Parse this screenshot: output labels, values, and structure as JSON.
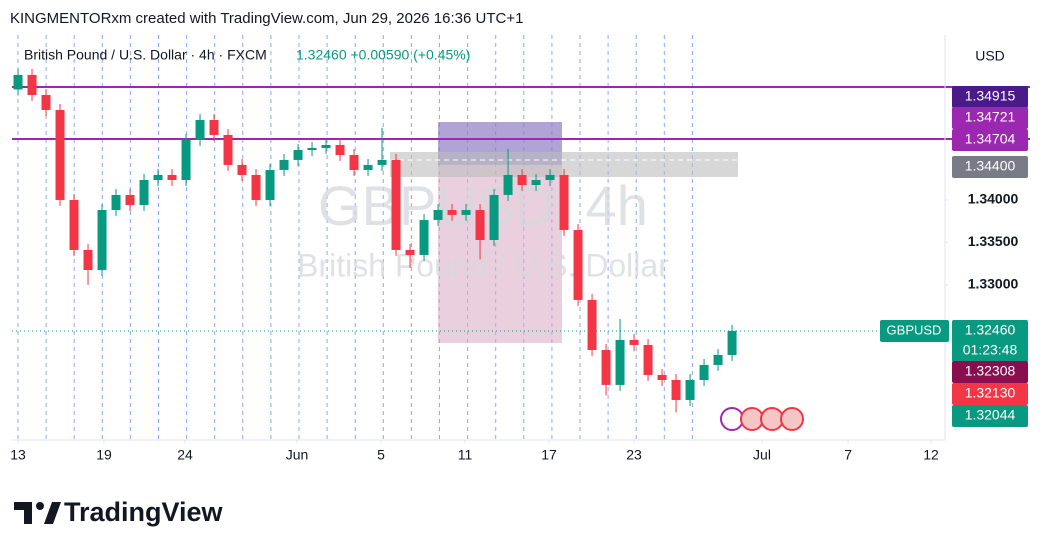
{
  "chart_data": {
    "type": "candlestick",
    "header": "KINGMENTORxm created with TradingView.com, Jun 29, 2026 16:36 UTC+1",
    "symbol_line": "British Pound / U.S. Dollar · 4h · FXCM",
    "quote": "1.32460 +0.00590 (+0.45%)",
    "watermark": "GBPUSD, 4h",
    "watermark_sub": "British Pound / U.S. Dollar",
    "currency": "USD",
    "footer": "TradingView",
    "up_color": "#089981",
    "down_color": "#f23645",
    "x": [
      0,
      1,
      2,
      3,
      4,
      5,
      6,
      7,
      8,
      9,
      10,
      11,
      12,
      13,
      14,
      15,
      16,
      17,
      18,
      19,
      20,
      21,
      22,
      23,
      24,
      25,
      26,
      27,
      28,
      29,
      30,
      31,
      32,
      33,
      34,
      35,
      36,
      37,
      38,
      39,
      40,
      41,
      42,
      43,
      44,
      45,
      46,
      47,
      48,
      49,
      50,
      51
    ],
    "open": [
      1.353,
      1.35471,
      1.35235,
      1.35059,
      1.34,
      1.33412,
      1.33176,
      1.33882,
      1.34059,
      1.33941,
      1.34235,
      1.34294,
      1.34235,
      1.34706,
      1.34941,
      1.34765,
      1.34412,
      1.34294,
      1.34,
      1.34353,
      1.34471,
      1.34588,
      1.34612,
      1.34647,
      1.34529,
      1.34353,
      1.34412,
      1.34471,
      1.33412,
      1.33353,
      1.33765,
      1.33882,
      1.33824,
      1.33882,
      1.33529,
      1.34059,
      1.34294,
      1.34176,
      1.34235,
      1.34294,
      1.33647,
      1.32824,
      1.32235,
      1.31824,
      1.32353,
      1.32294,
      1.31941,
      1.31882,
      1.31647,
      1.31882,
      1.32059,
      1.32176
    ],
    "high": [
      1.35541,
      1.35541,
      1.35305,
      1.35129,
      1.3407,
      1.33482,
      1.33952,
      1.34129,
      1.34129,
      1.34305,
      1.34364,
      1.34364,
      1.34776,
      1.35011,
      1.35011,
      1.34835,
      1.34482,
      1.34364,
      1.34423,
      1.34541,
      1.34658,
      1.34682,
      1.34717,
      1.34717,
      1.34599,
      1.34482,
      1.3485,
      1.34541,
      1.33482,
      1.33835,
      1.33952,
      1.33952,
      1.33952,
      1.33952,
      1.34129,
      1.346,
      1.34364,
      1.34305,
      1.34364,
      1.34364,
      1.33717,
      1.32894,
      1.32305,
      1.326,
      1.32423,
      1.32364,
      1.32011,
      1.31952,
      1.31952,
      1.32129,
      1.32246,
      1.3253
    ],
    "low": [
      1.3523,
      1.35165,
      1.34989,
      1.3393,
      1.33342,
      1.33,
      1.33106,
      1.33812,
      1.33871,
      1.33871,
      1.34165,
      1.34165,
      1.34165,
      1.34636,
      1.34695,
      1.34342,
      1.34224,
      1.3393,
      1.3393,
      1.34283,
      1.34401,
      1.34518,
      1.34542,
      1.34459,
      1.34283,
      1.34283,
      1.34342,
      1.33342,
      1.332,
      1.33283,
      1.33695,
      1.33754,
      1.33754,
      1.333,
      1.33459,
      1.33989,
      1.34106,
      1.34106,
      1.34165,
      1.33577,
      1.32754,
      1.32165,
      1.317,
      1.31754,
      1.32224,
      1.31871,
      1.31812,
      1.315,
      1.31577,
      1.31812,
      1.31989,
      1.32106
    ],
    "close": [
      1.35471,
      1.35235,
      1.35059,
      1.34,
      1.33412,
      1.33176,
      1.33882,
      1.34059,
      1.33941,
      1.34235,
      1.34294,
      1.34235,
      1.34706,
      1.34941,
      1.34765,
      1.34412,
      1.34294,
      1.34,
      1.34353,
      1.34471,
      1.34588,
      1.34612,
      1.34647,
      1.34529,
      1.34353,
      1.34412,
      1.34471,
      1.33412,
      1.33353,
      1.33765,
      1.33882,
      1.33824,
      1.33882,
      1.33529,
      1.34059,
      1.34294,
      1.34176,
      1.34235,
      1.34294,
      1.33647,
      1.32824,
      1.32235,
      1.31824,
      1.32353,
      1.32294,
      1.31941,
      1.31882,
      1.31647,
      1.31882,
      1.32059,
      1.32176,
      1.3246
    ],
    "xlim": [
      -0.43,
      66.21
    ],
    "xticks": [
      {
        "value": 0,
        "label": "13"
      },
      {
        "value": 6.14,
        "label": "19"
      },
      {
        "value": 11.93,
        "label": "24"
      },
      {
        "value": 19.93,
        "label": "Jun"
      },
      {
        "value": 25.93,
        "label": "5"
      },
      {
        "value": 31.93,
        "label": "11"
      },
      {
        "value": 37.93,
        "label": "17"
      },
      {
        "value": 44,
        "label": "23"
      },
      {
        "value": 53.14,
        "label": "Jul"
      },
      {
        "value": 59.29,
        "label": "7"
      },
      {
        "value": 65.21,
        "label": "12"
      }
    ],
    "ylim": [
      1.31176,
      1.35941
    ],
    "yticks": [
      {
        "value": 1.34,
        "label": "1.34000"
      },
      {
        "value": 1.335,
        "label": "1.33500"
      },
      {
        "value": 1.33,
        "label": "1.33000"
      }
    ],
    "price_tags": [
      {
        "label": "1.34915",
        "color": "#4a1a8a"
      },
      {
        "label": "1.34721",
        "color": "#9c27b0"
      },
      {
        "label": "1.34704",
        "color": "#9c27b0"
      },
      {
        "label": "1.34400",
        "color": "#787b86"
      },
      {
        "label": "1.32460",
        "color": "#089981"
      },
      {
        "label": "01:23:48",
        "color": "#089981"
      },
      {
        "label": "1.32308",
        "color": "#880e4f"
      },
      {
        "label": "1.32130",
        "color": "#f23645"
      },
      {
        "label": "1.32044",
        "color": "#089981"
      }
    ],
    "symbol_tag": "GBPUSD"
  }
}
